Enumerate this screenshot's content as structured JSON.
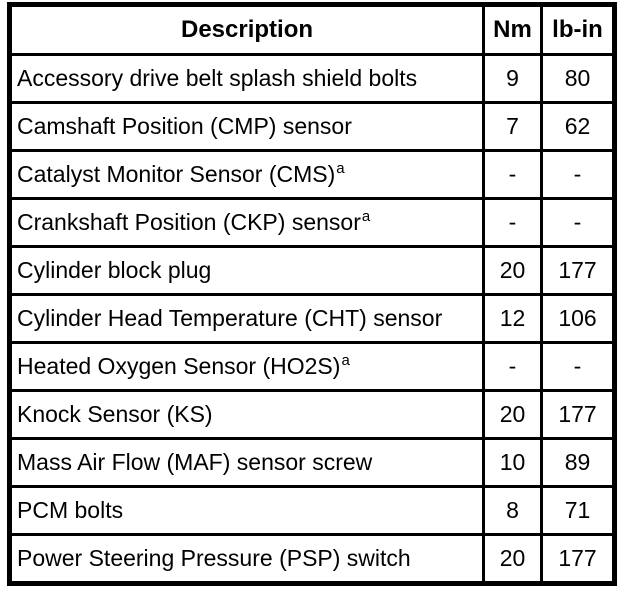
{
  "table": {
    "headers": {
      "description": "Description",
      "nm": "Nm",
      "lb_in": "lb-in"
    },
    "rows": [
      {
        "description": "Accessory drive belt splash shield bolts",
        "footnote": "",
        "nm": "9",
        "lb_in": "80"
      },
      {
        "description": "Camshaft Position (CMP) sensor",
        "footnote": "",
        "nm": "7",
        "lb_in": "62"
      },
      {
        "description": "Catalyst Monitor Sensor (CMS)",
        "footnote": "a",
        "nm": "-",
        "lb_in": "-"
      },
      {
        "description": "Crankshaft Position (CKP) sensor",
        "footnote": "a",
        "nm": "-",
        "lb_in": "-"
      },
      {
        "description": "Cylinder block plug",
        "footnote": "",
        "nm": "20",
        "lb_in": "177"
      },
      {
        "description": "Cylinder Head Temperature (CHT) sensor",
        "footnote": "",
        "nm": "12",
        "lb_in": "106"
      },
      {
        "description": "Heated Oxygen Sensor (HO2S)",
        "footnote": "a",
        "nm": "-",
        "lb_in": "-"
      },
      {
        "description": "Knock Sensor (KS)",
        "footnote": "",
        "nm": "20",
        "lb_in": "177"
      },
      {
        "description": "Mass Air Flow (MAF) sensor screw",
        "footnote": "",
        "nm": "10",
        "lb_in": "89"
      },
      {
        "description": "PCM bolts",
        "footnote": "",
        "nm": "8",
        "lb_in": "71"
      },
      {
        "description": "Power Steering Pressure (PSP) switch",
        "footnote": "",
        "nm": "20",
        "lb_in": "177"
      }
    ],
    "colors": {
      "border": "#000000",
      "text": "#000000",
      "background": "#ffffff"
    }
  }
}
